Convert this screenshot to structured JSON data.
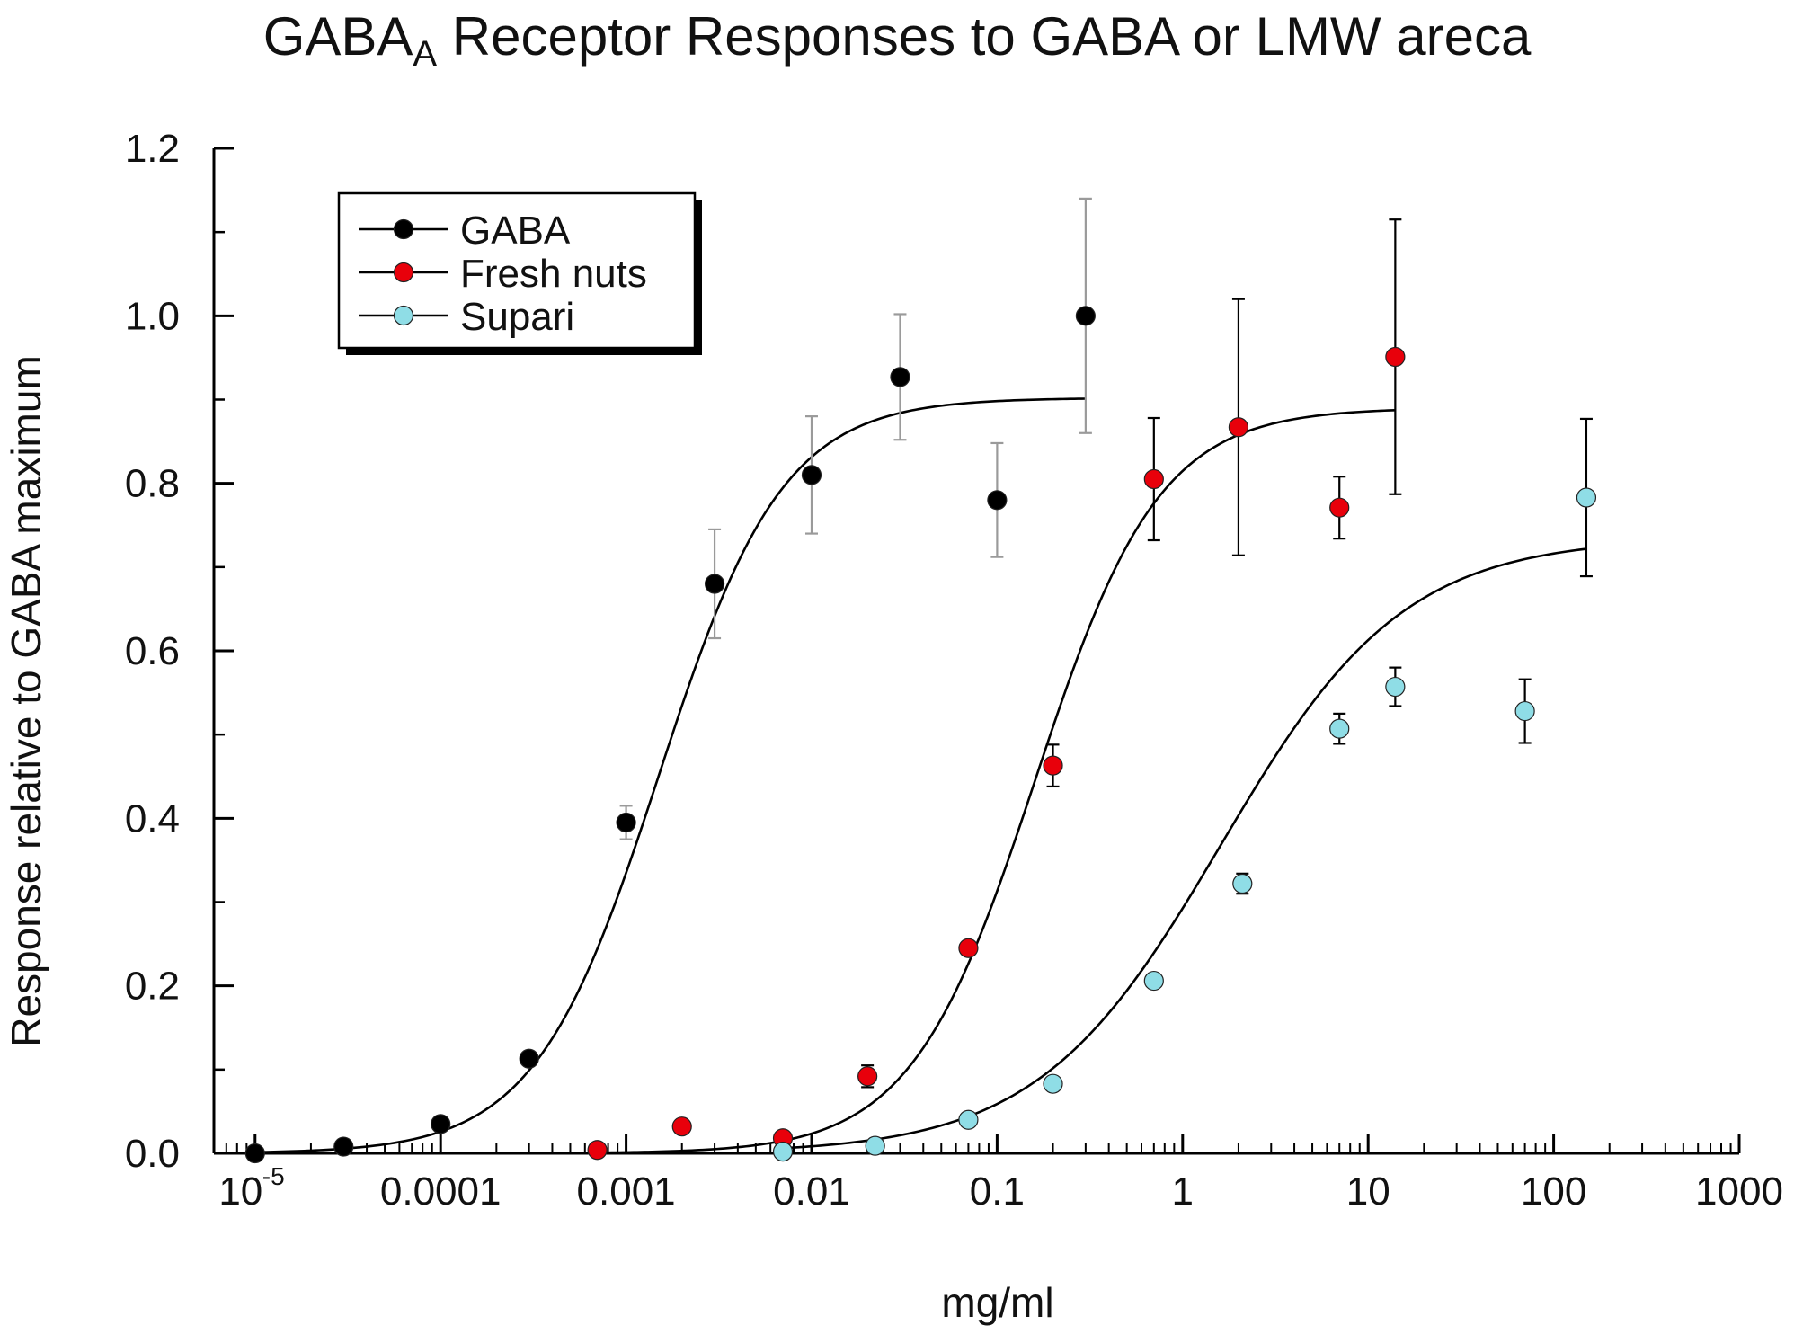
{
  "chart_data": {
    "type": "scatter",
    "title_main": "GABA",
    "title_sub": "A",
    "title_rest": " Receptor Responses to GABA or LMW areca",
    "xlabel": "mg/ml",
    "ylabel": "Response relative to GABA maximum",
    "x_scale": "log",
    "xlim": [
      6e-06,
      1000
    ],
    "ylim": [
      0,
      1.2
    ],
    "x_ticks": [
      {
        "value": 1e-05,
        "label": "10",
        "sup": "-5"
      },
      {
        "value": 0.0001,
        "label": "0.0001"
      },
      {
        "value": 0.001,
        "label": "0.001"
      },
      {
        "value": 0.01,
        "label": "0.01"
      },
      {
        "value": 0.1,
        "label": "0.1"
      },
      {
        "value": 1,
        "label": "1"
      },
      {
        "value": 10,
        "label": "10"
      },
      {
        "value": 100,
        "label": "100"
      },
      {
        "value": 1000,
        "label": "1000"
      }
    ],
    "y_ticks": [
      {
        "value": 0,
        "label": "0.0"
      },
      {
        "value": 0.2,
        "label": "0.2"
      },
      {
        "value": 0.4,
        "label": "0.4"
      },
      {
        "value": 0.6,
        "label": "0.6"
      },
      {
        "value": 0.8,
        "label": "0.8"
      },
      {
        "value": 1.0,
        "label": "1.0"
      },
      {
        "value": 1.2,
        "label": "1.2"
      }
    ],
    "grid": false,
    "legend_position": "top-left",
    "series": [
      {
        "name": "GABA",
        "color": "#000000",
        "errorbar_color": "#9a9a9a",
        "points": [
          {
            "x": 1e-05,
            "y": 0.0
          },
          {
            "x": 3e-05,
            "y": 0.008
          },
          {
            "x": 0.0001,
            "y": 0.035
          },
          {
            "x": 0.0003,
            "y": 0.113
          },
          {
            "x": 0.001,
            "y": 0.395,
            "err": 0.02
          },
          {
            "x": 0.003,
            "y": 0.68,
            "err": 0.065
          },
          {
            "x": 0.01,
            "y": 0.81,
            "err": 0.07
          },
          {
            "x": 0.03,
            "y": 0.927,
            "err": 0.075
          },
          {
            "x": 0.1,
            "y": 0.78,
            "err": 0.068
          },
          {
            "x": 0.3,
            "y": 1.0,
            "err": 0.14
          }
        ],
        "fit": {
          "max": 0.902,
          "ec50": 0.0015,
          "hill": 1.3,
          "x_start": 1e-05,
          "x_end": 0.3
        }
      },
      {
        "name": "Fresh nuts",
        "color": "#e8000b",
        "errorbar_color": "#000000",
        "points": [
          {
            "x": 0.0007,
            "y": 0.004
          },
          {
            "x": 0.002,
            "y": 0.032
          },
          {
            "x": 0.007,
            "y": 0.018
          },
          {
            "x": 0.02,
            "y": 0.092,
            "err": 0.013
          },
          {
            "x": 0.07,
            "y": 0.245
          },
          {
            "x": 0.2,
            "y": 0.463,
            "err": 0.025
          },
          {
            "x": 0.7,
            "y": 0.805,
            "err": 0.073
          },
          {
            "x": 2,
            "y": 0.867,
            "err": 0.153
          },
          {
            "x": 7,
            "y": 0.771,
            "err": 0.037
          },
          {
            "x": 14,
            "y": 0.951,
            "err": 0.164
          }
        ],
        "fit": {
          "max": 0.89,
          "ec50": 0.16,
          "hill": 1.3,
          "x_start": 0.0007,
          "x_end": 14
        }
      },
      {
        "name": "Supari",
        "color": "#8fdde6",
        "errorbar_color": "#000000",
        "points": [
          {
            "x": 0.007,
            "y": 0.002
          },
          {
            "x": 0.022,
            "y": 0.009
          },
          {
            "x": 0.07,
            "y": 0.04
          },
          {
            "x": 0.2,
            "y": 0.083
          },
          {
            "x": 0.7,
            "y": 0.206
          },
          {
            "x": 2.1,
            "y": 0.322,
            "err": 0.012
          },
          {
            "x": 7,
            "y": 0.507,
            "err": 0.018
          },
          {
            "x": 14,
            "y": 0.557,
            "err": 0.023
          },
          {
            "x": 70,
            "y": 0.528,
            "err": 0.038
          },
          {
            "x": 150,
            "y": 0.783,
            "err": 0.094
          }
        ],
        "fit": {
          "max": 0.735,
          "ec50": 1.6,
          "hill": 0.88,
          "x_start": 0.007,
          "x_end": 150
        }
      }
    ]
  }
}
